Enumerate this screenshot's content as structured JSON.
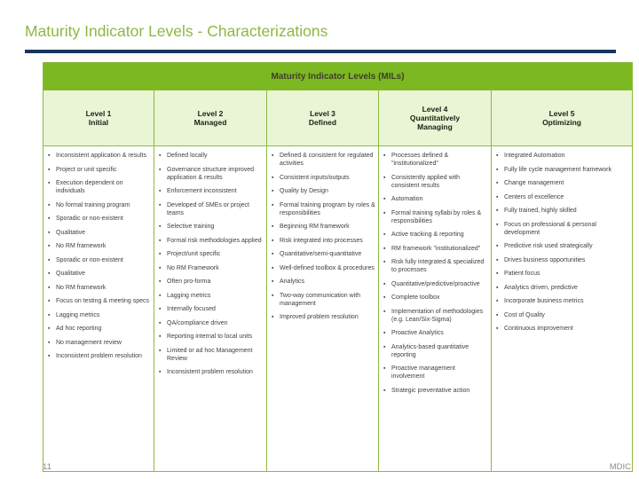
{
  "slide": {
    "title": "Maturity Indicator Levels - Characterizations",
    "page_number": "11",
    "footer_logo": "MDIC"
  },
  "table": {
    "banner": "Maturity Indicator Levels (MILs)",
    "columns": [
      {
        "level": "Level 1",
        "name": "Initial",
        "items": [
          "Inconsistent application & results",
          "Project or unit specific",
          "Execution dependent on individuals",
          "No formal training program",
          "Sporadic or non-existent",
          "Qualitative",
          "No RM framework",
          "Sporadic or non-existent",
          "Qualitative",
          "No RM framework",
          "Focus on testing & meeting specs",
          "Lagging metrics",
          "Ad hoc reporting",
          "No management review",
          "Inconsistent problem resolution"
        ]
      },
      {
        "level": "Level 2",
        "name": "Managed",
        "items": [
          "Defined locally",
          "Governance structure improved application & results",
          "Enforcement inconsistent",
          "Developed of SMEs or project teams",
          "Selective training",
          "Formal risk methodologies applied",
          "Project/unit specific",
          "No RM Framework",
          "Often pro-forma",
          "Lagging metrics",
          "Internally focused",
          "QA/compliance driven",
          "Reporting internal to local units",
          "Limited or ad hoc Management Review",
          "Inconsistent problem resolution"
        ]
      },
      {
        "level": "Level 3",
        "name": "Defined",
        "items": [
          "Defined & consistent for regulated activities",
          "Consistent inputs/outputs",
          "Quality by Design",
          "Formal training program by roles & responsibilities",
          "Beginning RM framework",
          "Risk integrated into processes",
          "Quantitative/semi-quantitative",
          "Well-defined toolbox & procedures",
          "Analytics",
          "Two-way communication with management",
          "Improved problem resolution"
        ]
      },
      {
        "level": "Level 4",
        "name": "Quantitatively Managing",
        "items": [
          "Processes defined & \"institutionalized\"",
          "Consistently applied with consistent results",
          "Automation",
          "Formal training syllabi by roles & responsibilities",
          "Active tracking & reporting",
          "RM framework \"institutionalized\"",
          "Risk fully integrated & specialized to processes",
          "Quantitative/predictive/proactive",
          "Complete toolbox",
          "Implementation of methodologies (e.g. Lean/Six-Sigma)",
          "Proactive Analytics",
          "Analytics-based quantitative reporting",
          "Proactive management involvement",
          "Strategic preventative action"
        ]
      },
      {
        "level": "Level 5",
        "name": "Optimizing",
        "items": [
          "Integrated Automation",
          "Fully life cycle management framework",
          "Change management",
          "Centers of excellence",
          "Fully trained, highly skilled",
          "Focus on professional & personal development",
          "Predictive risk used strategically",
          "Drives business opportunities",
          "Patient focus",
          "Analytics driven, predictive",
          "Incorporate business metrics",
          "Cost of Quality",
          "Continuous improvement"
        ]
      }
    ]
  },
  "colors": {
    "title-green": "#8db843",
    "rule-navy": "#17365d",
    "banner-green": "#7cb821",
    "banner-text": "#3e3e2e",
    "header-bg": "#e9f5d4",
    "border-green": "#8cb93e",
    "body-text": "#3f3f3f",
    "footer-gray": "#8c8c8c"
  }
}
